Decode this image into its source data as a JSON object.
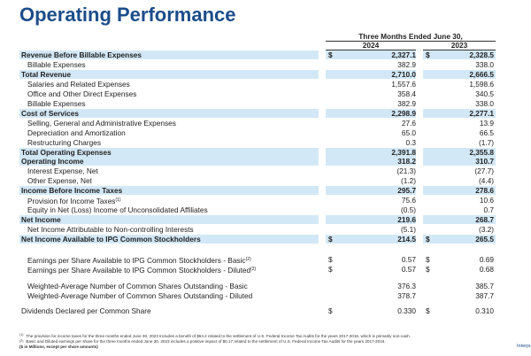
{
  "header": {
    "title": "Operating Performance",
    "period": "Three Months Ended June 30,",
    "years": [
      "2024",
      "2023"
    ]
  },
  "sections": [
    {
      "top": 57,
      "step": 10.95,
      "rows": [
        {
          "label": "Revenue Before Billable Expenses",
          "emphasis": true,
          "currency": "$",
          "values": [
            "2,327.1",
            "2,328.5"
          ]
        },
        {
          "label": "Billable Expenses",
          "indent": true,
          "values": [
            "382.9",
            "338.0"
          ]
        },
        {
          "label": "Total Revenue",
          "emphasis": true,
          "values": [
            "2,710.0",
            "2,666.5"
          ]
        },
        {
          "label": "Salaries and Related Expenses",
          "indent": true,
          "values": [
            "1,557.6",
            "1,598.6"
          ]
        },
        {
          "label": "Office and Other Direct Expenses",
          "indent": true,
          "values": [
            "358.4",
            "340.5"
          ]
        },
        {
          "label": "Billable Expenses",
          "indent": true,
          "values": [
            "382.9",
            "338.0"
          ]
        },
        {
          "label": "Cost of Services",
          "emphasis": true,
          "values": [
            "2,298.9",
            "2,277.1"
          ]
        },
        {
          "label": "Selling, General and Administrative Expenses",
          "indent": true,
          "values": [
            "27.6",
            "13.9"
          ]
        },
        {
          "label": "Depreciation and Amortization",
          "indent": true,
          "values": [
            "65.0",
            "66.5"
          ]
        },
        {
          "label": "Restructuring Charges",
          "indent": true,
          "values": [
            "0.3",
            "(1.7)"
          ]
        },
        {
          "label": "Total Operating Expenses",
          "emphasis": true,
          "values": [
            "2,391.8",
            "2,355.8"
          ]
        },
        {
          "label": "Operating Income",
          "emphasis": true,
          "values": [
            "318.2",
            "310.7"
          ]
        },
        {
          "label": "Interest Expense, Net",
          "indent": true,
          "values": [
            "(21.3)",
            "(27.7)"
          ]
        },
        {
          "label": "Other Expense, Net",
          "indent": true,
          "values": [
            "(1.2)",
            "(4.4)"
          ]
        },
        {
          "label": "Income Before Income Taxes",
          "emphasis": true,
          "values": [
            "295.7",
            "278.6"
          ]
        },
        {
          "label": "Provision for Income Taxes",
          "note": "(1)",
          "indent": true,
          "values": [
            "75.6",
            "10.6"
          ]
        },
        {
          "label": "Equity in Net (Loss) Income of Unconsolidated Affiliates",
          "indent": true,
          "values": [
            "(0.5)",
            "0.7"
          ]
        },
        {
          "label": "Net Income",
          "emphasis": true,
          "values": [
            "219.6",
            "268.7"
          ]
        },
        {
          "label": "Net Income Attributable to Non-controlling Interests",
          "indent": true,
          "values": [
            "(5.1)",
            "(3.2)"
          ]
        },
        {
          "label": "Net Income Available to IPG Common Stockholders",
          "emphasis": true,
          "currency": "$",
          "values": [
            "214.5",
            "265.5"
          ]
        }
      ]
    },
    {
      "top": 288,
      "step": 10.5,
      "rows": [
        {
          "label": "Earnings per Share Available to IPG Common Stockholders - Basic",
          "note": "(2)",
          "indent": true,
          "currency": "$",
          "values": [
            "0.57",
            "0.69"
          ]
        },
        {
          "label": "Earnings per Share Available to IPG Common Stockholders - Diluted",
          "note": "(2)",
          "indent": true,
          "currency": "$",
          "values": [
            "0.57",
            "0.68"
          ]
        }
      ]
    },
    {
      "top": 318,
      "step": 10.5,
      "rows": [
        {
          "label": "Weighted-Average Number of Common Shares Outstanding - Basic",
          "indent": true,
          "values": [
            "376.3",
            "385.7"
          ]
        },
        {
          "label": "Weighted-Average Number of Common Shares Outstanding - Diluted",
          "indent": true,
          "values": [
            "378.7",
            "387.7"
          ]
        }
      ]
    },
    {
      "top": 346,
      "step": 10.5,
      "rows": [
        {
          "label": "Dividends Declared per Common Share",
          "currency": "$",
          "values": [
            "0.330",
            "0.310"
          ]
        }
      ]
    }
  ],
  "footnotes": [
    {
      "marker": "(1)",
      "text": "The provision for income taxes for the three months ended June 30, 2023 includes a benefit of $64.2 related to the settlement of U.S. Federal Income Tax Audits for the years 2017-2016, which is primarily non-cash."
    },
    {
      "marker": "(2)",
      "text": "Basic and Diluted earnings per share for the three months ended June 30, 2023 includes a positive impact of $0.17 related to the settlement of U.S. Federal Income Tax Audits for the years 2017-2016."
    }
  ],
  "units": "($ in Millions, except per share amounts)",
  "brand": "Interpu"
}
